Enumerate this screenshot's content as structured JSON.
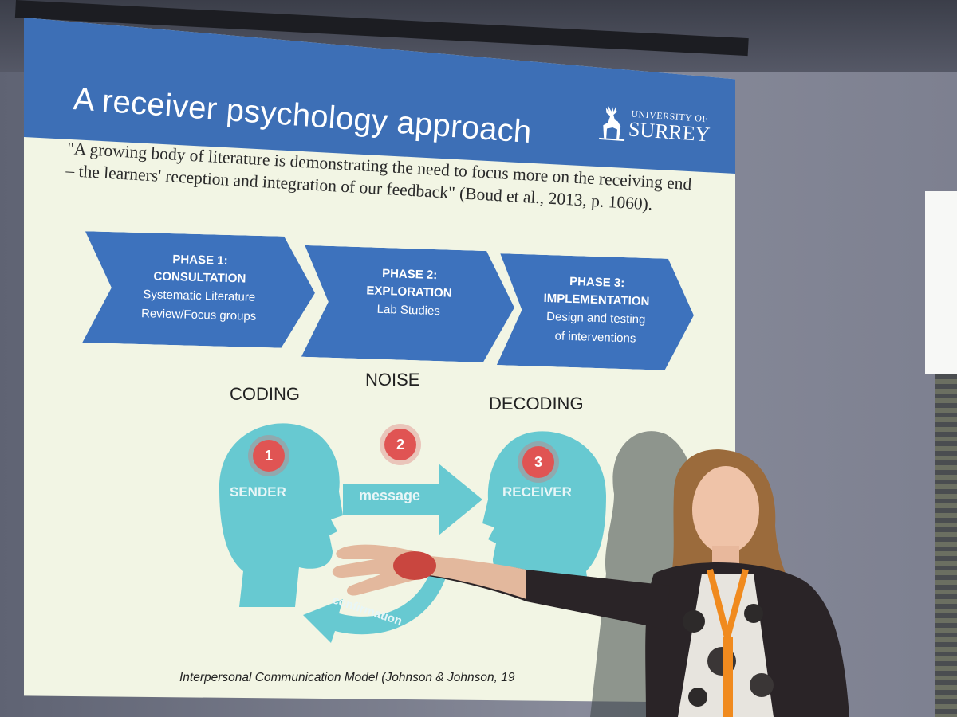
{
  "slide": {
    "title": "A receiver psychology approach",
    "logo": {
      "line1": "UNIVERSITY OF",
      "line2": "SURREY"
    },
    "quote": "\"A growing body of literature is demonstrating the need to focus more on the receiving end – the learners' reception and integration of our feedback\" (Boud et al., 2013, p. 1060).",
    "phases": [
      {
        "label": "PHASE 1:",
        "name": "CONSULTATION",
        "desc1": "Systematic Literature",
        "desc2": "Review/Focus groups"
      },
      {
        "label": "PHASE 2:",
        "name": "EXPLORATION",
        "desc1": "Lab Studies",
        "desc2": ""
      },
      {
        "label": "PHASE 3:",
        "name": "IMPLEMENTATION",
        "desc1": "Design and testing",
        "desc2": "of interventions"
      }
    ],
    "model": {
      "coding": "CODING",
      "noise": "NOISE",
      "decoding": "DECODING",
      "sender": "SENDER",
      "receiver": "RECEIVER",
      "message": "message",
      "confirmation": "confirmation",
      "badge1": "1",
      "badge2": "2",
      "badge3": "3"
    },
    "caption": "Interpersonal Communication Model (Johnson & Johnson, 19"
  },
  "colors": {
    "slide_bg": "#f2f5e4",
    "header_blue": "#3d6fb6",
    "chevron_blue": "#3d72bd",
    "head_cyan": "#67c9d1",
    "badge_red": "#e05453",
    "lanyard_orange": "#f08a1e"
  }
}
